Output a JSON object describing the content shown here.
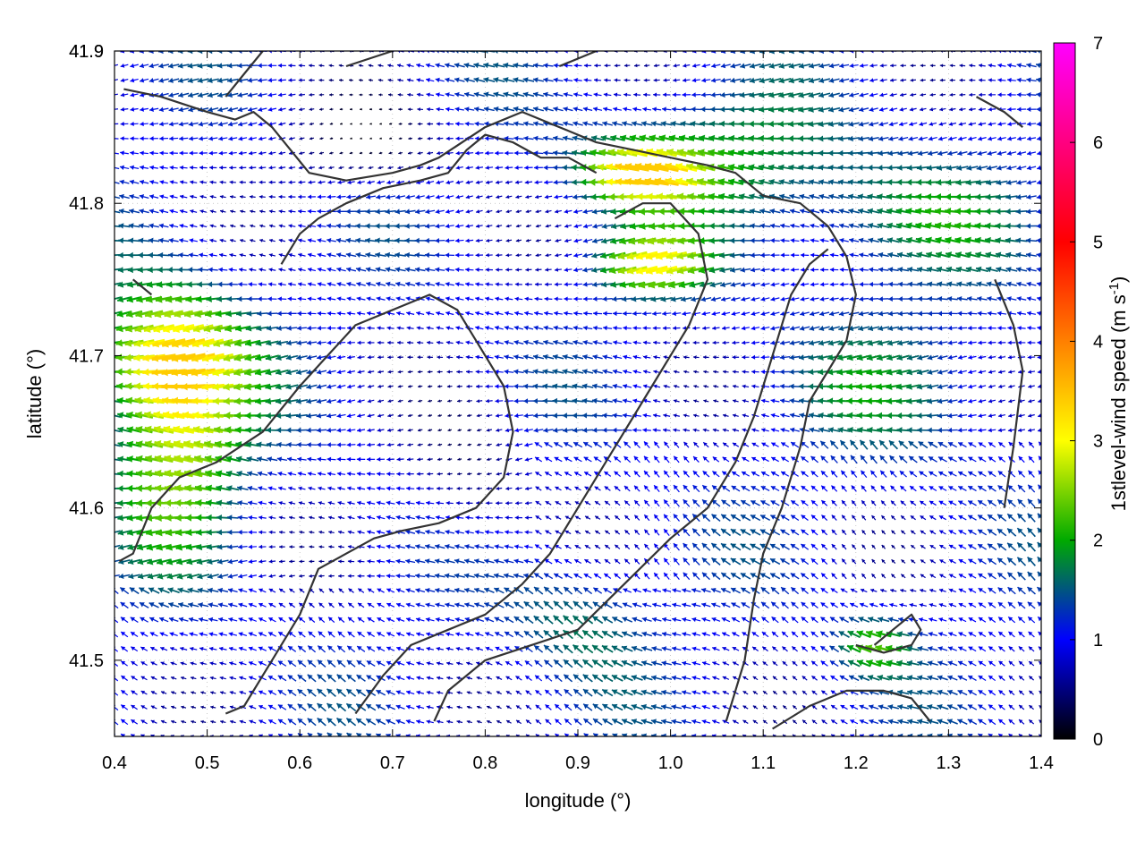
{
  "chart_data": {
    "type": "vector-field",
    "xlabel": "longitude (°)",
    "ylabel": "latitude (°)",
    "xlim": [
      0.4,
      1.4
    ],
    "ylim": [
      41.45,
      41.9
    ],
    "xticks": [
      "0.4",
      "0.5",
      "0.6",
      "0.7",
      "0.8",
      "0.9",
      "1.0",
      "1.1",
      "1.2",
      "1.3",
      "1.4"
    ],
    "yticks": [
      "41.5",
      "41.6",
      "41.7",
      "41.8",
      "41.9"
    ],
    "grid": true,
    "colorbar": {
      "label_main": "1stlevel-wind speed (m s",
      "label_sup": "-1",
      "label_end": ")",
      "range": [
        0,
        7
      ],
      "ticks": [
        "0",
        "1",
        "2",
        "3",
        "4",
        "5",
        "6",
        "7"
      ],
      "colors": [
        "#000000",
        "#0000ff",
        "#00aa00",
        "#ffff00",
        "#ff8000",
        "#ff0000",
        "#ff00ff"
      ]
    },
    "contours": [
      [
        [
          0.41,
          41.875
        ],
        [
          0.45,
          41.87
        ],
        [
          0.5,
          41.86
        ],
        [
          0.53,
          41.855
        ],
        [
          0.55,
          41.86
        ],
        [
          0.57,
          41.85
        ],
        [
          0.59,
          41.835
        ],
        [
          0.61,
          41.82
        ],
        [
          0.65,
          41.815
        ],
        [
          0.7,
          41.82
        ],
        [
          0.73,
          41.825
        ],
        [
          0.75,
          41.83
        ],
        [
          0.8,
          41.85
        ],
        [
          0.84,
          41.86
        ],
        [
          0.88,
          41.85
        ],
        [
          0.92,
          41.84
        ],
        [
          0.96,
          41.835
        ],
        [
          1.0,
          41.83
        ],
        [
          1.04,
          41.825
        ],
        [
          1.07,
          41.82
        ],
        [
          1.1,
          41.805
        ],
        [
          1.14,
          41.8
        ],
        [
          1.17,
          41.785
        ],
        [
          1.19,
          41.765
        ],
        [
          1.2,
          41.74
        ],
        [
          1.19,
          41.71
        ],
        [
          1.17,
          41.69
        ],
        [
          1.15,
          41.67
        ],
        [
          1.14,
          41.64
        ],
        [
          1.12,
          41.6
        ],
        [
          1.1,
          41.57
        ],
        [
          1.09,
          41.54
        ],
        [
          1.08,
          41.5
        ],
        [
          1.06,
          41.46
        ]
      ],
      [
        [
          0.405,
          41.565
        ],
        [
          0.42,
          41.57
        ],
        [
          0.44,
          41.6
        ],
        [
          0.47,
          41.62
        ],
        [
          0.51,
          41.63
        ],
        [
          0.56,
          41.65
        ],
        [
          0.6,
          41.68
        ],
        [
          0.63,
          41.7
        ],
        [
          0.66,
          41.72
        ],
        [
          0.7,
          41.73
        ],
        [
          0.74,
          41.74
        ],
        [
          0.77,
          41.73
        ],
        [
          0.8,
          41.7
        ],
        [
          0.82,
          41.68
        ],
        [
          0.83,
          41.65
        ],
        [
          0.82,
          41.62
        ],
        [
          0.79,
          41.6
        ],
        [
          0.75,
          41.59
        ],
        [
          0.71,
          41.585
        ],
        [
          0.68,
          41.58
        ],
        [
          0.65,
          41.57
        ],
        [
          0.62,
          41.56
        ],
        [
          0.6,
          41.53
        ],
        [
          0.57,
          41.5
        ],
        [
          0.54,
          41.47
        ],
        [
          0.52,
          41.465
        ]
      ],
      [
        [
          0.66,
          41.465
        ],
        [
          0.69,
          41.49
        ],
        [
          0.72,
          41.51
        ],
        [
          0.76,
          41.52
        ],
        [
          0.8,
          41.53
        ],
        [
          0.84,
          41.55
        ],
        [
          0.87,
          41.57
        ],
        [
          0.9,
          41.6
        ],
        [
          0.93,
          41.63
        ],
        [
          0.96,
          41.66
        ],
        [
          0.99,
          41.69
        ],
        [
          1.02,
          41.72
        ],
        [
          1.04,
          41.75
        ],
        [
          1.03,
          41.78
        ],
        [
          1.0,
          41.8
        ],
        [
          0.97,
          41.8
        ],
        [
          0.94,
          41.79
        ]
      ],
      [
        [
          0.58,
          41.76
        ],
        [
          0.6,
          41.78
        ],
        [
          0.62,
          41.79
        ],
        [
          0.65,
          41.8
        ],
        [
          0.69,
          41.81
        ],
        [
          0.73,
          41.815
        ],
        [
          0.76,
          41.82
        ],
        [
          0.78,
          41.835
        ],
        [
          0.8,
          41.845
        ],
        [
          0.83,
          41.84
        ],
        [
          0.86,
          41.83
        ],
        [
          0.89,
          41.83
        ],
        [
          0.92,
          41.82
        ]
      ],
      [
        [
          0.745,
          41.46
        ],
        [
          0.76,
          41.48
        ],
        [
          0.8,
          41.5
        ],
        [
          0.85,
          41.51
        ],
        [
          0.9,
          41.52
        ],
        [
          0.95,
          41.55
        ],
        [
          1.0,
          41.58
        ],
        [
          1.04,
          41.6
        ],
        [
          1.07,
          41.63
        ],
        [
          1.09,
          41.66
        ],
        [
          1.11,
          41.7
        ],
        [
          1.13,
          41.74
        ],
        [
          1.15,
          41.76
        ],
        [
          1.17,
          41.77
        ]
      ],
      [
        [
          1.11,
          41.455
        ],
        [
          1.15,
          41.47
        ],
        [
          1.19,
          41.48
        ],
        [
          1.23,
          41.48
        ],
        [
          1.26,
          41.475
        ],
        [
          1.28,
          41.46
        ]
      ],
      [
        [
          1.2,
          41.51
        ],
        [
          1.23,
          41.505
        ],
        [
          1.26,
          41.51
        ],
        [
          1.27,
          41.52
        ],
        [
          1.26,
          41.53
        ],
        [
          1.24,
          41.52
        ],
        [
          1.22,
          41.51
        ]
      ],
      [
        [
          0.52,
          41.87
        ],
        [
          0.54,
          41.885
        ],
        [
          0.56,
          41.9
        ]
      ],
      [
        [
          0.65,
          41.89
        ],
        [
          0.7,
          41.9
        ]
      ],
      [
        [
          0.88,
          41.89
        ],
        [
          0.92,
          41.9
        ]
      ],
      [
        [
          1.33,
          41.87
        ],
        [
          1.36,
          41.86
        ],
        [
          1.38,
          41.85
        ]
      ],
      [
        [
          1.35,
          41.75
        ],
        [
          1.37,
          41.72
        ],
        [
          1.38,
          41.69
        ],
        [
          1.37,
          41.64
        ],
        [
          1.36,
          41.6
        ]
      ],
      [
        [
          0.42,
          41.75
        ],
        [
          0.44,
          41.74
        ]
      ]
    ]
  }
}
